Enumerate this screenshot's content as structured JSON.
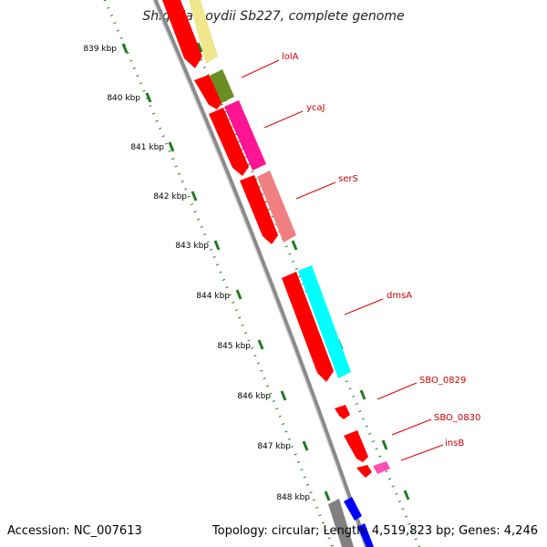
{
  "title": "Shigella boydii Sb227, complete genome",
  "footer": {
    "accession": "Accession: NC_007613",
    "stats": "Topology: circular; Length: 4,519,823 bp; Genes: 4,246"
  },
  "ruler_labels": [
    "839 kbp",
    "840 kbp",
    "841 kbp",
    "842 kbp",
    "843 kbp",
    "844 kbp",
    "845 kbp",
    "846 kbp",
    "847 kbp",
    "848 kbp"
  ],
  "gene_labels": [
    "lolA",
    "ycaJ",
    "serS",
    "dmsA",
    "SBO_0829",
    "SBO_0830",
    "insB"
  ],
  "colors": {
    "backbone": "#8a8a8a",
    "ruler": "#1f7a1f",
    "label_line": "#e00000",
    "label_text": "#cc0000",
    "feature_red": "#ff0000",
    "feature_yellow": "#f0e68c",
    "feature_olive": "#6b8e23",
    "feature_magenta": "#ff1493",
    "feature_salmon": "#f08080",
    "feature_cyan": "#00ffff",
    "feature_pink": "#ff4fb0",
    "feature_gray": "#808080",
    "feature_blue": "#0000ff"
  }
}
